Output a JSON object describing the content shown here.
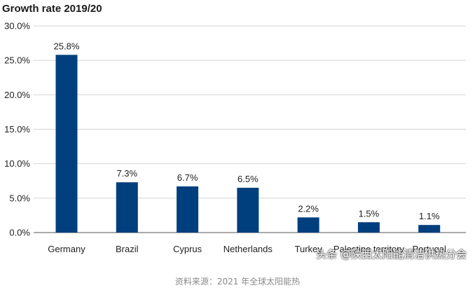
{
  "chart_data": {
    "type": "bar",
    "title": "Growth rate 2019/20",
    "categories": [
      "Germany",
      "Brazil",
      "Cyprus",
      "Netherlands",
      "Turkey",
      "Palestine territory",
      "Portugal"
    ],
    "values": [
      25.8,
      7.3,
      6.7,
      6.5,
      2.2,
      1.5,
      1.1
    ],
    "value_labels": [
      "25.8%",
      "7.3%",
      "6.7%",
      "6.5%",
      "2.2%",
      "1.5%",
      "1.1%"
    ],
    "yticks": [
      "0.0%",
      "5.0%",
      "10.0%",
      "15.0%",
      "20.0%",
      "25.0%",
      "30.0%"
    ],
    "ylim": [
      0,
      30
    ],
    "xlabel": "",
    "ylabel": "",
    "grid": true,
    "bar_color": "#003f7d"
  },
  "watermark": "头条 @陕西太阳能清洁供热分会",
  "source": "资料来源：2021 年全球太阳能热"
}
